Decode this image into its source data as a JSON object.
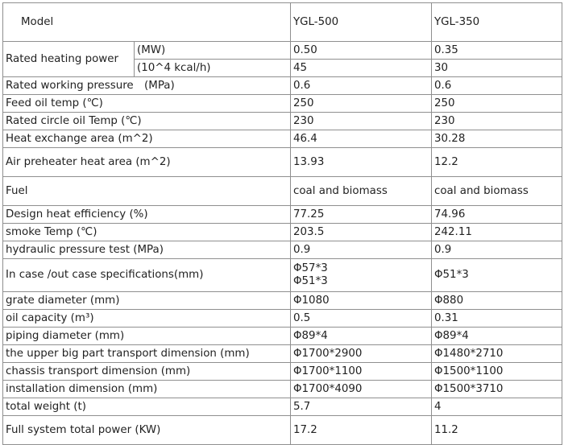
{
  "table": {
    "header": {
      "label": "Model",
      "col_a": "YGL-500",
      "col_b": "YGL-350"
    },
    "rated_heating_power": {
      "label": "Rated heating power",
      "sub": [
        {
          "unit": "(MW)",
          "a": "0.50",
          "b": "0.35"
        },
        {
          "unit": "(10^4 kcal/h)",
          "a": "45",
          "b": "30"
        }
      ]
    },
    "rows": [
      {
        "label": "Rated working pressure　(MPa)",
        "a": "0.6",
        "b": "0.6"
      },
      {
        "label": "Feed oil temp (℃)",
        "a": "250",
        "b": "250"
      },
      {
        "label": "Rated circle oil Temp (℃)",
        "a": "230",
        "b": "230"
      },
      {
        "label": "Heat exchange area  (m^2)",
        "a": "46.4",
        "b": "30.28"
      },
      {
        "label": "Air preheater heat area  (m^2)",
        "a": "13.93",
        "b": "12.2"
      },
      {
        "label": "Fuel",
        "a": "coal and biomass",
        "b": "coal and biomass"
      },
      {
        "label": "Design heat efficiency (%)",
        "a": "77.25",
        "b": "74.96"
      },
      {
        "label": "smoke Temp  (℃)",
        "a": "203.5",
        "b": "242.11"
      },
      {
        "label": "hydraulic pressure test (MPa)",
        "a": "0.9",
        "b": "0.9"
      }
    ],
    "case_spec": {
      "label": "In case /out case specifications(mm)",
      "a1": "Φ57*3",
      "a2": "Φ51*3",
      "b": " Φ51*3"
    },
    "rows2": [
      {
        "label": "grate diameter (mm)",
        "a": "Φ1080",
        "b": "Φ880"
      },
      {
        "label": "oil capacity (m³)",
        "a": "0.5",
        "b": "0.31"
      },
      {
        "label": "piping diameter (mm)",
        "a": "Φ89*4",
        "b": "Φ89*4"
      },
      {
        "label": "the upper big part transport dimension (mm)",
        "a": "Φ1700*2900",
        "b": "Φ1480*2710"
      },
      {
        "label": "chassis transport dimension (mm)",
        "a": "Φ1700*1100",
        "b": "Φ1500*1100"
      },
      {
        "label": "installation dimension (mm)",
        "a": "Φ1700*4090",
        "b": "Φ1500*3710"
      },
      {
        "label": "total weight (t)",
        "a": "5.7",
        "b": "4"
      },
      {
        "label": "Full system total power (KW)",
        "a": "17.2",
        "b": "11.2"
      }
    ]
  }
}
